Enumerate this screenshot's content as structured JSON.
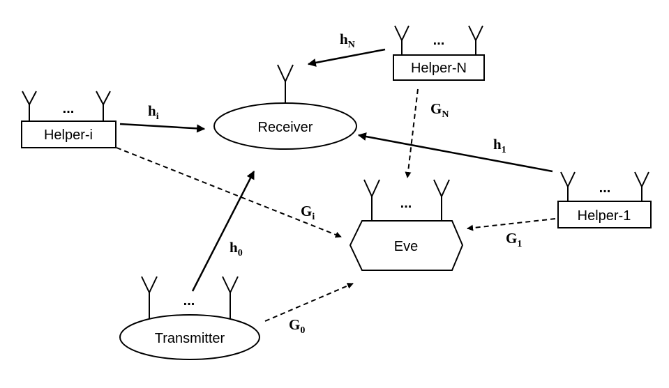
{
  "nodes": {
    "receiver": "Receiver",
    "transmitter": "Transmitter",
    "eve": "Eve",
    "helper_i": "Helper-i",
    "helper_n": "Helper-N",
    "helper_1": "Helper-1"
  },
  "ellipsis": "...",
  "links": {
    "h_n": {
      "base": "h",
      "sub": "N"
    },
    "h_i": {
      "base": "h",
      "sub": "i"
    },
    "h_1": {
      "base": "h",
      "sub": "1"
    },
    "h_0": {
      "base": "h",
      "sub": "0"
    },
    "g_n": {
      "base": "G",
      "sub": "N"
    },
    "g_i": {
      "base": "G",
      "sub": "i"
    },
    "g_1": {
      "base": "G",
      "sub": "1"
    },
    "g_0": {
      "base": "G",
      "sub": "0"
    }
  }
}
